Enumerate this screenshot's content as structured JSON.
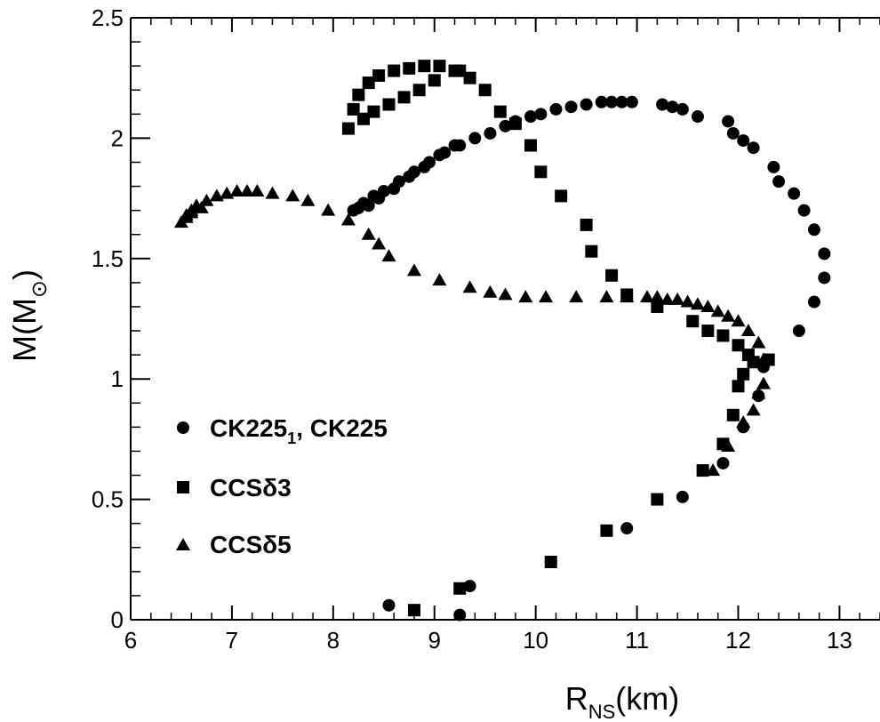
{
  "chart_data": {
    "type": "scatter",
    "xlabel_main": "R",
    "xlabel_sub": "NS",
    "xlabel_unit": "(km)",
    "ylabel_main": "M(M",
    "ylabel_sub": "⊙",
    "ylabel_close": ")",
    "xlim": [
      6,
      13.4
    ],
    "ylim": [
      0,
      2.5
    ],
    "x_ticks": [
      "6",
      "7",
      "8",
      "9",
      "10",
      "11",
      "12",
      "13"
    ],
    "y_ticks": [
      "0",
      "0.5",
      "1",
      "1.5",
      "2",
      "2.5"
    ],
    "grid": false,
    "legend_position": "lower-left",
    "series": [
      {
        "name_main": "CK225",
        "name_sub": "1",
        "name_rest": ", CK225",
        "marker": "circle",
        "x": [
          9.25,
          8.55,
          9.35,
          10.15,
          10.9,
          11.45,
          11.85,
          12.05,
          12.2,
          12.25,
          12.6,
          12.75,
          12.85,
          12.85,
          12.75,
          12.65,
          12.55,
          12.4,
          12.35,
          12.15,
          12.05,
          11.95,
          11.9,
          11.6,
          11.45,
          11.35,
          11.25,
          10.95,
          10.85,
          10.75,
          10.65,
          10.5,
          10.35,
          10.2,
          10.05,
          9.95,
          9.8,
          9.7,
          9.55,
          9.4,
          9.2,
          9.05,
          8.9,
          8.75,
          8.6,
          8.45,
          8.35,
          8.25,
          8.2,
          8.3,
          8.4,
          8.5,
          8.65,
          8.8,
          8.95,
          9.1,
          9.25
        ],
        "y": [
          0.02,
          0.06,
          0.14,
          0.24,
          0.38,
          0.51,
          0.65,
          0.8,
          0.93,
          1.05,
          1.2,
          1.32,
          1.42,
          1.52,
          1.62,
          1.7,
          1.77,
          1.82,
          1.88,
          1.96,
          1.99,
          2.02,
          2.07,
          2.09,
          2.12,
          2.13,
          2.14,
          2.15,
          2.15,
          2.15,
          2.15,
          2.14,
          2.13,
          2.12,
          2.1,
          2.09,
          2.07,
          2.05,
          2.02,
          2.0,
          1.97,
          1.93,
          1.88,
          1.84,
          1.79,
          1.75,
          1.72,
          1.71,
          1.7,
          1.73,
          1.76,
          1.78,
          1.82,
          1.86,
          1.9,
          1.94,
          1.97
        ]
      },
      {
        "name_main": "CCSδ3",
        "name_sub": "",
        "name_rest": "",
        "marker": "square",
        "x": [
          8.8,
          9.25,
          10.15,
          10.7,
          11.2,
          11.65,
          11.85,
          11.95,
          12.0,
          12.05,
          12.15,
          12.3,
          12.1,
          12.0,
          11.85,
          11.7,
          11.55,
          11.2,
          10.9,
          10.75,
          10.55,
          10.5,
          10.25,
          10.05,
          9.95,
          9.8,
          9.65,
          9.5,
          9.35,
          9.25,
          9.05,
          8.9,
          8.75,
          8.6,
          8.45,
          8.35,
          8.25,
          8.2,
          8.15,
          8.3,
          8.4,
          8.55,
          8.7,
          8.85,
          9.0,
          9.2
        ],
        "y": [
          0.04,
          0.13,
          0.24,
          0.37,
          0.5,
          0.62,
          0.73,
          0.85,
          0.97,
          1.02,
          1.07,
          1.08,
          1.1,
          1.14,
          1.18,
          1.2,
          1.24,
          1.3,
          1.35,
          1.43,
          1.53,
          1.64,
          1.76,
          1.86,
          1.97,
          2.06,
          2.11,
          2.2,
          2.25,
          2.28,
          2.3,
          2.3,
          2.29,
          2.28,
          2.26,
          2.23,
          2.18,
          2.12,
          2.04,
          2.08,
          2.11,
          2.14,
          2.17,
          2.2,
          2.24,
          2.28
        ]
      },
      {
        "name_main": "CCSδ5",
        "name_sub": "",
        "name_rest": "",
        "marker": "triangle",
        "x": [
          11.75,
          11.9,
          12.05,
          12.15,
          12.2,
          12.25,
          12.25,
          12.2,
          12.1,
          12.0,
          11.9,
          11.8,
          11.7,
          11.6,
          11.5,
          11.4,
          11.3,
          11.2,
          11.1,
          10.9,
          10.7,
          10.4,
          10.1,
          9.9,
          9.7,
          9.55,
          9.35,
          9.05,
          8.8,
          8.55,
          8.45,
          8.35,
          8.15,
          7.95,
          7.75,
          7.6,
          7.4,
          7.25,
          7.15,
          7.05,
          6.95,
          6.85,
          6.75,
          6.65,
          6.6,
          6.55,
          6.5,
          6.55,
          6.6,
          6.7
        ],
        "y": [
          0.62,
          0.72,
          0.82,
          0.87,
          0.94,
          0.98,
          1.08,
          1.15,
          1.2,
          1.24,
          1.26,
          1.28,
          1.3,
          1.31,
          1.32,
          1.33,
          1.33,
          1.34,
          1.34,
          1.34,
          1.34,
          1.34,
          1.34,
          1.34,
          1.35,
          1.36,
          1.38,
          1.41,
          1.45,
          1.51,
          1.56,
          1.6,
          1.66,
          1.7,
          1.74,
          1.76,
          1.77,
          1.78,
          1.78,
          1.78,
          1.77,
          1.76,
          1.74,
          1.72,
          1.7,
          1.68,
          1.65,
          1.67,
          1.69,
          1.71
        ]
      }
    ]
  }
}
